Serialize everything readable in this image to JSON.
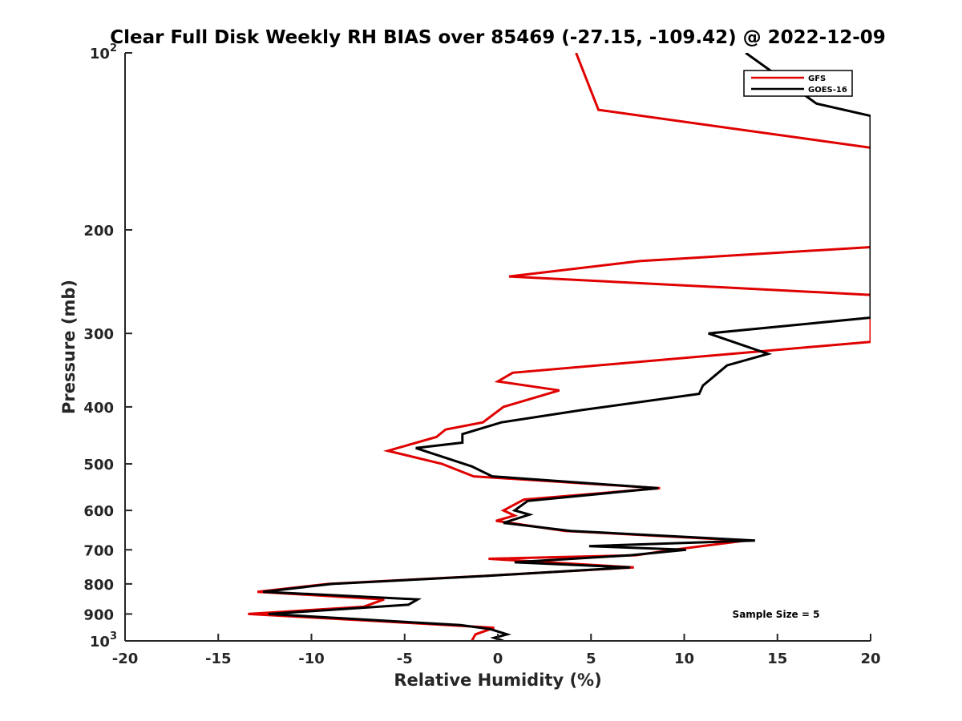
{
  "chart_data": {
    "type": "line",
    "title": "Clear Full Disk Weekly RH BIAS over 85469 (-27.15, -109.42) @ 2022-12-09",
    "xlabel": "Relative Humidity (%)",
    "ylabel": "Pressure (mb)",
    "xlim": [
      -20,
      20
    ],
    "ylim": [
      100,
      1000
    ],
    "y_scale": "log",
    "y_reversed": true,
    "x_ticks": [
      "-20",
      "-15",
      "-10",
      "-5",
      "0",
      "5",
      "10",
      "15",
      "20"
    ],
    "y_ticks": [
      {
        "value": 100,
        "label": "10",
        "sup": "2"
      },
      {
        "value": 200,
        "label": "200",
        "sup": ""
      },
      {
        "value": 300,
        "label": "300",
        "sup": ""
      },
      {
        "value": 400,
        "label": "400",
        "sup": ""
      },
      {
        "value": 500,
        "label": "500",
        "sup": ""
      },
      {
        "value": 600,
        "label": "600",
        "sup": ""
      },
      {
        "value": 700,
        "label": "700",
        "sup": ""
      },
      {
        "value": 800,
        "label": "800",
        "sup": ""
      },
      {
        "value": 900,
        "label": "900",
        "sup": ""
      },
      {
        "value": 1000,
        "label": "10",
        "sup": "3"
      }
    ],
    "grid": false,
    "legend_position": "top-right",
    "annotation": "Sample Size = 5",
    "series": [
      {
        "name": "GFS",
        "color": "#e00000",
        "points": [
          [
            -1.4,
            1000
          ],
          [
            -1.2,
            975
          ],
          [
            -0.2,
            950
          ],
          [
            -6.6,
            925
          ],
          [
            -13.4,
            900
          ],
          [
            -7.2,
            875
          ],
          [
            -6.1,
            850
          ],
          [
            -12.9,
            825
          ],
          [
            -9.1,
            800
          ],
          [
            -0.6,
            775
          ],
          [
            7.3,
            750
          ],
          [
            -0.5,
            725
          ],
          [
            7.4,
            715
          ],
          [
            9.4,
            700
          ],
          [
            13.3,
            675
          ],
          [
            3.6,
            650
          ],
          [
            -0.1,
            625
          ],
          [
            0.9,
            612
          ],
          [
            0.3,
            600
          ],
          [
            1.4,
            575
          ],
          [
            8.7,
            550
          ],
          [
            -1.3,
            525
          ],
          [
            -3.0,
            500
          ],
          [
            -5.9,
            475
          ],
          [
            -3.3,
            450
          ],
          [
            -2.8,
            437
          ],
          [
            -0.8,
            425
          ],
          [
            0.3,
            400
          ],
          [
            3.3,
            375
          ],
          [
            0.0,
            362
          ],
          [
            0.8,
            350
          ],
          [
            20,
            310
          ],
          [
            20,
            258
          ],
          [
            0.6,
            240
          ],
          [
            7.6,
            226
          ],
          [
            20,
            214
          ],
          [
            20,
            145
          ],
          [
            5.4,
            125
          ],
          [
            4.2,
            100
          ]
        ]
      },
      {
        "name": "GOES-16",
        "color": "#000000",
        "points": [
          [
            0.3,
            1000
          ],
          [
            -0.2,
            988
          ],
          [
            0.5,
            975
          ],
          [
            -0.4,
            955
          ],
          [
            -2.0,
            940
          ],
          [
            -12.3,
            900
          ],
          [
            -4.8,
            868
          ],
          [
            -4.3,
            850
          ],
          [
            -12.6,
            825
          ],
          [
            -8.9,
            800
          ],
          [
            -0.5,
            775
          ],
          [
            7.1,
            750
          ],
          [
            0.9,
            735
          ],
          [
            7.1,
            715
          ],
          [
            10.1,
            700
          ],
          [
            4.9,
            690
          ],
          [
            13.8,
            675
          ],
          [
            3.9,
            650
          ],
          [
            0.3,
            630
          ],
          [
            1.7,
            610
          ],
          [
            0.9,
            600
          ],
          [
            1.6,
            578
          ],
          [
            8.6,
            550
          ],
          [
            -0.3,
            525
          ],
          [
            -1.4,
            505
          ],
          [
            -4.4,
            470
          ],
          [
            -1.9,
            460
          ],
          [
            -1.9,
            445
          ],
          [
            0.2,
            425
          ],
          [
            4.5,
            405
          ],
          [
            10.8,
            380
          ],
          [
            11.0,
            368
          ],
          [
            12.3,
            340
          ],
          [
            14.5,
            325
          ],
          [
            11.3,
            300
          ],
          [
            20,
            282
          ],
          [
            20,
            128
          ],
          [
            17.1,
            122
          ],
          [
            13.3,
            100
          ]
        ]
      }
    ]
  }
}
